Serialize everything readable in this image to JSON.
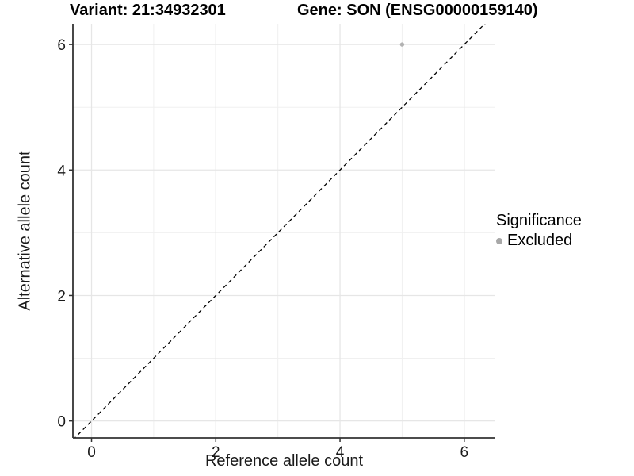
{
  "figure": {
    "title_left": "Variant: 21:34932301",
    "title_right": "Gene: SON (ENSG00000159140)"
  },
  "chart_data": {
    "type": "scatter",
    "title": "Variant: 21:34932301   Gene: SON (ENSG00000159140)",
    "xlabel": "Reference allele count",
    "ylabel": "Alternative allele count",
    "xlim": [
      -0.3,
      6.5
    ],
    "ylim": [
      -0.27,
      6.33
    ],
    "xticks": [
      0,
      2,
      4,
      6
    ],
    "yticks": [
      0,
      2,
      4,
      6
    ],
    "minor_xticks": [
      1,
      3,
      5
    ],
    "minor_yticks": [
      1,
      3,
      5
    ],
    "grid": true,
    "series": [
      {
        "name": "Excluded",
        "color": "#b2b2b2",
        "points": [
          {
            "x": 5,
            "y": 6
          }
        ]
      }
    ],
    "reference_line": {
      "type": "abline",
      "slope": 1,
      "intercept": 0,
      "style": "dashed",
      "color": "#000000"
    },
    "legend": {
      "title": "Significance",
      "position": "right",
      "items": [
        {
          "label": "Excluded",
          "color": "#a8a8a8"
        }
      ]
    },
    "colors": {
      "panel_background": "#ffffff",
      "grid_major": "#e6e6e6",
      "grid_minor": "#f0f0f0",
      "axis_line": "#333333",
      "tick_label": "#1a1a1a"
    }
  }
}
